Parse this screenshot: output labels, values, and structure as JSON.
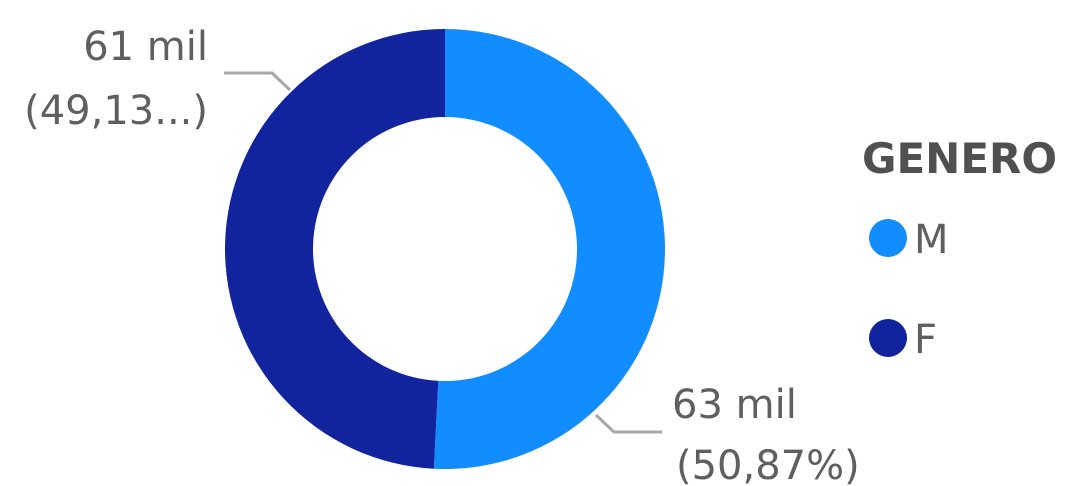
{
  "chart_data": {
    "type": "pie",
    "variant": "donut",
    "legend_title": "GENERO",
    "legend_position": "right",
    "categories": [
      "M",
      "F"
    ],
    "values": [
      63,
      61
    ],
    "percentages": [
      50.87,
      49.13
    ],
    "data_labels": [
      {
        "value_text": "63 mil",
        "percent_text": "(50,87%)"
      },
      {
        "value_text": "61 mil",
        "percent_text": "(49,13...)"
      }
    ],
    "colors": [
      "#118dff",
      "#12239e"
    ]
  }
}
